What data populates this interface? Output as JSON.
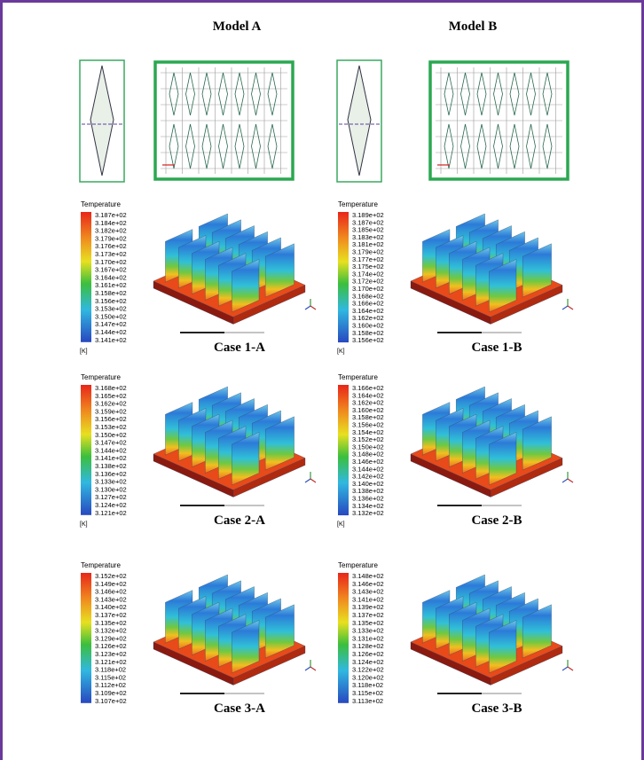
{
  "models": [
    {
      "title": "Model A"
    },
    {
      "title": "Model B"
    }
  ],
  "cases": [
    {
      "legend_title": "Temperature",
      "ticks": [
        "3.187e+02",
        "3.184e+02",
        "3.182e+02",
        "3.179e+02",
        "3.176e+02",
        "3.173e+02",
        "3.170e+02",
        "3.167e+02",
        "3.164e+02",
        "3.161e+02",
        "3.158e+02",
        "3.156e+02",
        "3.153e+02",
        "3.150e+02",
        "3.147e+02",
        "3.144e+02",
        "3.141e+02"
      ],
      "unit": "[K]",
      "label": "Case 1-A"
    },
    {
      "legend_title": "Temperature",
      "ticks": [
        "3.189e+02",
        "3.187e+02",
        "3.185e+02",
        "3.183e+02",
        "3.181e+02",
        "3.179e+02",
        "3.177e+02",
        "3.175e+02",
        "3.174e+02",
        "3.172e+02",
        "3.170e+02",
        "3.168e+02",
        "3.166e+02",
        "3.164e+02",
        "3.162e+02",
        "3.160e+02",
        "3.158e+02",
        "3.156e+02"
      ],
      "unit": "[K]",
      "label": "Case 1-B"
    },
    {
      "legend_title": "Temperature",
      "ticks": [
        "3.168e+02",
        "3.165e+02",
        "3.162e+02",
        "3.159e+02",
        "3.156e+02",
        "3.153e+02",
        "3.150e+02",
        "3.147e+02",
        "3.144e+02",
        "3.141e+02",
        "3.138e+02",
        "3.136e+02",
        "3.133e+02",
        "3.130e+02",
        "3.127e+02",
        "3.124e+02",
        "3.121e+02"
      ],
      "unit": "[K]",
      "label": "Case 2-A"
    },
    {
      "legend_title": "Temperature",
      "ticks": [
        "3.166e+02",
        "3.164e+02",
        "3.162e+02",
        "3.160e+02",
        "3.158e+02",
        "3.156e+02",
        "3.154e+02",
        "3.152e+02",
        "3.150e+02",
        "3.148e+02",
        "3.146e+02",
        "3.144e+02",
        "3.142e+02",
        "3.140e+02",
        "3.138e+02",
        "3.136e+02",
        "3.134e+02",
        "3.132e+02"
      ],
      "unit": "[K]",
      "label": "Case 2-B"
    },
    {
      "legend_title": "Temperature",
      "ticks": [
        "3.152e+02",
        "3.149e+02",
        "3.146e+02",
        "3.143e+02",
        "3.140e+02",
        "3.137e+02",
        "3.135e+02",
        "3.132e+02",
        "3.129e+02",
        "3.126e+02",
        "3.123e+02",
        "3.121e+02",
        "3.118e+02",
        "3.115e+02",
        "3.112e+02",
        "3.109e+02",
        "3.107e+02"
      ],
      "label": "Case 3-A"
    },
    {
      "legend_title": "Temperature",
      "ticks": [
        "3.148e+02",
        "3.146e+02",
        "3.143e+02",
        "3.141e+02",
        "3.139e+02",
        "3.137e+02",
        "3.135e+02",
        "3.133e+02",
        "3.131e+02",
        "3.128e+02",
        "3.126e+02",
        "3.124e+02",
        "3.122e+02",
        "3.120e+02",
        "3.118e+02",
        "3.115e+02",
        "3.113e+02"
      ],
      "label": "Case 3-B"
    }
  ]
}
